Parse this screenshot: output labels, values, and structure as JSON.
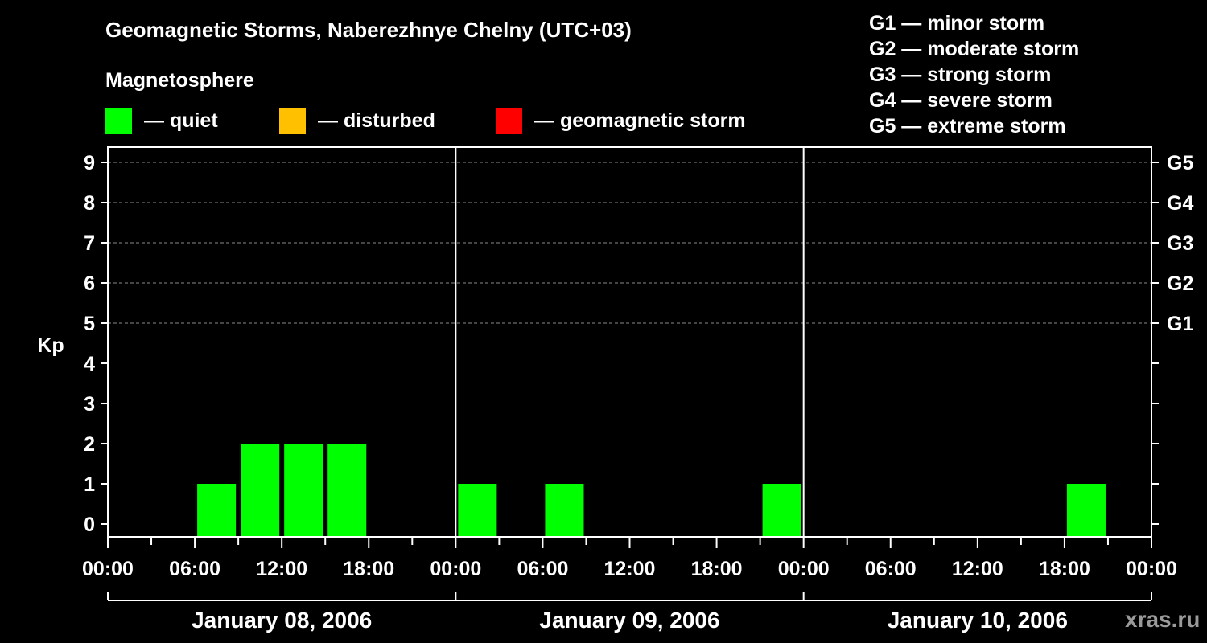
{
  "header": {
    "title": "Geomagnetic Storms, Naberezhnye Chelny (UTC+03)",
    "subtitle": "Magnetosphere"
  },
  "legend": [
    {
      "label": "— quiet",
      "color": "#00ff00"
    },
    {
      "label": "— disturbed",
      "color": "#ffc000"
    },
    {
      "label": "— geomagnetic storm",
      "color": "#ff0000"
    }
  ],
  "storm_scale": [
    "G1 — minor storm",
    "G2 — moderate storm",
    "G3 — strong storm",
    "G4 — severe storm",
    "G5 — extreme storm"
  ],
  "watermark": "xras.ru",
  "chart_data": {
    "type": "bar",
    "title": "Geomagnetic Storms, Naberezhnye Chelny (UTC+03)",
    "ylabel": "Kp",
    "ylim": [
      0,
      9
    ],
    "y_ticks": [
      0,
      1,
      2,
      3,
      4,
      5,
      6,
      7,
      8,
      9
    ],
    "right_axis_ticks": [
      {
        "kp": 5,
        "label": "G1"
      },
      {
        "kp": 6,
        "label": "G2"
      },
      {
        "kp": 7,
        "label": "G3"
      },
      {
        "kp": 8,
        "label": "G4"
      },
      {
        "kp": 9,
        "label": "G5"
      }
    ],
    "grid": "dashed horizontal at Kp 5–9",
    "x_tick_labels": [
      "00:00",
      "06:00",
      "12:00",
      "18:00",
      "00:00",
      "06:00",
      "12:00",
      "18:00",
      "00:00",
      "06:00",
      "12:00",
      "18:00",
      "00:00"
    ],
    "days": [
      "January 08, 2006",
      "January 09, 2006",
      "January 10, 2006"
    ],
    "interval_hours": 3,
    "series": [
      {
        "values": [
          0,
          0,
          1,
          2,
          2,
          2,
          0,
          0,
          1,
          0,
          1,
          0,
          0,
          0,
          0,
          1,
          0,
          0,
          0,
          0,
          0,
          0,
          1,
          0
        ]
      }
    ],
    "bar_color": "#00ff00",
    "status_colors": {
      "quiet": "#00ff00",
      "disturbed": "#ffc000",
      "storm": "#ff0000"
    }
  }
}
